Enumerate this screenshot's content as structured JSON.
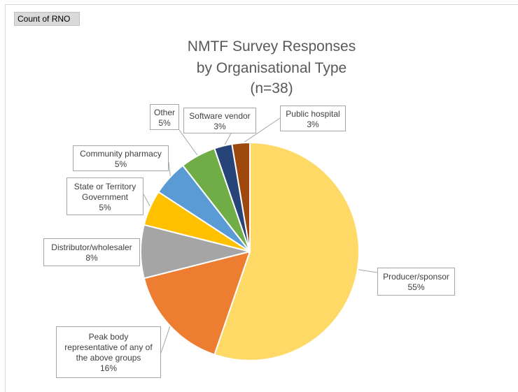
{
  "field_button": {
    "label": "Count of RNO"
  },
  "chart_data": {
    "type": "pie",
    "title": [
      "NMTF Survey Responses",
      "by Organisational Type",
      "(n=38)"
    ],
    "slices": [
      {
        "name": "Producer/sponsor",
        "label_lines": [
          "Producer/sponsor"
        ],
        "value": 21,
        "percent_label": "55%",
        "color": "#FFD966"
      },
      {
        "name": "Peak body representative of any of the above groups",
        "label_lines": [
          "Peak body",
          "representative of any of",
          "the above groups"
        ],
        "value": 6,
        "percent_label": "16%",
        "color": "#ED7D31"
      },
      {
        "name": "Distributor/wholesaler",
        "label_lines": [
          "Distributor/wholesaler"
        ],
        "value": 3,
        "percent_label": "8%",
        "color": "#A5A5A5"
      },
      {
        "name": "State or Territory Government",
        "label_lines": [
          "State or Territory",
          "Government"
        ],
        "value": 2,
        "percent_label": "5%",
        "color": "#FFC000"
      },
      {
        "name": "Community pharmacy",
        "label_lines": [
          "Community pharmacy"
        ],
        "value": 2,
        "percent_label": "5%",
        "color": "#5B9BD5"
      },
      {
        "name": "Other",
        "label_lines": [
          "Other"
        ],
        "value": 2,
        "percent_label": "5%",
        "color": "#70AD47"
      },
      {
        "name": "Software vendor",
        "label_lines": [
          "Software vendor"
        ],
        "value": 1,
        "percent_label": "3%",
        "color": "#264478"
      },
      {
        "name": "Public hospital",
        "label_lines": [
          "Public hospital"
        ],
        "value": 1,
        "percent_label": "3%",
        "color": "#9E480E"
      }
    ]
  }
}
